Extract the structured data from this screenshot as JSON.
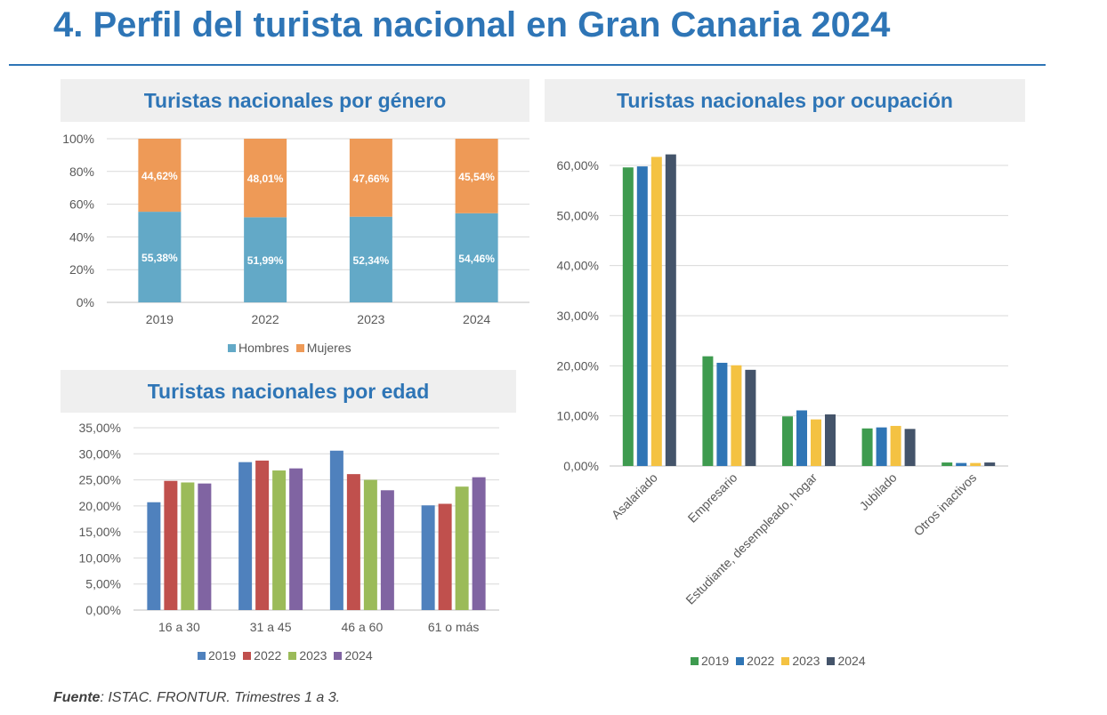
{
  "page": {
    "title": "4. Perfil del turista nacional en Gran Canaria 2024",
    "source_label": "Fuente",
    "source_text": ": ISTAC. FRONTUR. Trimestres 1 a 3."
  },
  "chart_data": [
    {
      "id": "genero",
      "type": "bar",
      "stacked": true,
      "percent_stacked": true,
      "title": "Turistas nacionales por género",
      "categories": [
        "2019",
        "2022",
        "2023",
        "2024"
      ],
      "series": [
        {
          "name": "Hombres",
          "values": [
            55.38,
            51.99,
            52.34,
            54.46
          ],
          "labels": [
            "55,38%",
            "51,99%",
            "52,34%",
            "54,46%"
          ],
          "color": "#63A9C7"
        },
        {
          "name": "Mujeres",
          "values": [
            44.62,
            48.01,
            47.66,
            45.54
          ],
          "labels": [
            "44,62%",
            "48,01%",
            "47,66%",
            "45,54%"
          ],
          "color": "#EE9A57"
        }
      ],
      "ylim": [
        0,
        100
      ],
      "yticks": [
        0,
        20,
        40,
        60,
        80,
        100
      ],
      "ytick_labels": [
        "0%",
        "20%",
        "40%",
        "60%",
        "80%",
        "100%"
      ],
      "grid": true,
      "legend_position": "bottom"
    },
    {
      "id": "edad",
      "type": "bar",
      "title": "Turistas nacionales por edad",
      "categories": [
        "16 a 30",
        "31 a 45",
        "46 a 60",
        "61 o más"
      ],
      "series": [
        {
          "name": "2019",
          "values": [
            20.7,
            28.4,
            30.6,
            20.1
          ],
          "color": "#4F81BD"
        },
        {
          "name": "2022",
          "values": [
            24.8,
            28.7,
            26.1,
            20.4
          ],
          "color": "#C0504D"
        },
        {
          "name": "2023",
          "values": [
            24.5,
            26.8,
            25.0,
            23.7
          ],
          "color": "#9BBB59"
        },
        {
          "name": "2024",
          "values": [
            24.3,
            27.2,
            23.0,
            25.5
          ],
          "color": "#8064A2"
        }
      ],
      "ylim": [
        0,
        35
      ],
      "yticks": [
        0,
        5,
        10,
        15,
        20,
        25,
        30,
        35
      ],
      "ytick_labels": [
        "0,00%",
        "5,00%",
        "10,00%",
        "15,00%",
        "20,00%",
        "25,00%",
        "30,00%",
        "35,00%"
      ],
      "grid": true,
      "legend_position": "bottom"
    },
    {
      "id": "ocupacion",
      "type": "bar",
      "title": "Turistas nacionales por ocupación",
      "categories": [
        "Asalariado",
        "Empresario",
        "Estudiante, desempleado, hogar",
        "Jubilado",
        "Otros inactivos"
      ],
      "series": [
        {
          "name": "2019",
          "values": [
            59.6,
            21.9,
            9.9,
            7.5,
            0.7
          ],
          "color": "#3E9B4F"
        },
        {
          "name": "2022",
          "values": [
            59.8,
            20.6,
            11.1,
            7.7,
            0.6
          ],
          "color": "#2F75B5"
        },
        {
          "name": "2023",
          "values": [
            61.7,
            20.1,
            9.3,
            8.0,
            0.6
          ],
          "color": "#F4C242"
        },
        {
          "name": "2024",
          "values": [
            62.2,
            19.2,
            10.3,
            7.4,
            0.7
          ],
          "color": "#44546A"
        }
      ],
      "ylim": [
        0,
        60
      ],
      "yticks": [
        0,
        10,
        20,
        30,
        40,
        50,
        60
      ],
      "ytick_labels": [
        "0,00%",
        "10,00%",
        "20,00%",
        "30,00%",
        "40,00%",
        "50,00%",
        "60,00%"
      ],
      "grid": true,
      "legend_position": "bottom"
    }
  ]
}
